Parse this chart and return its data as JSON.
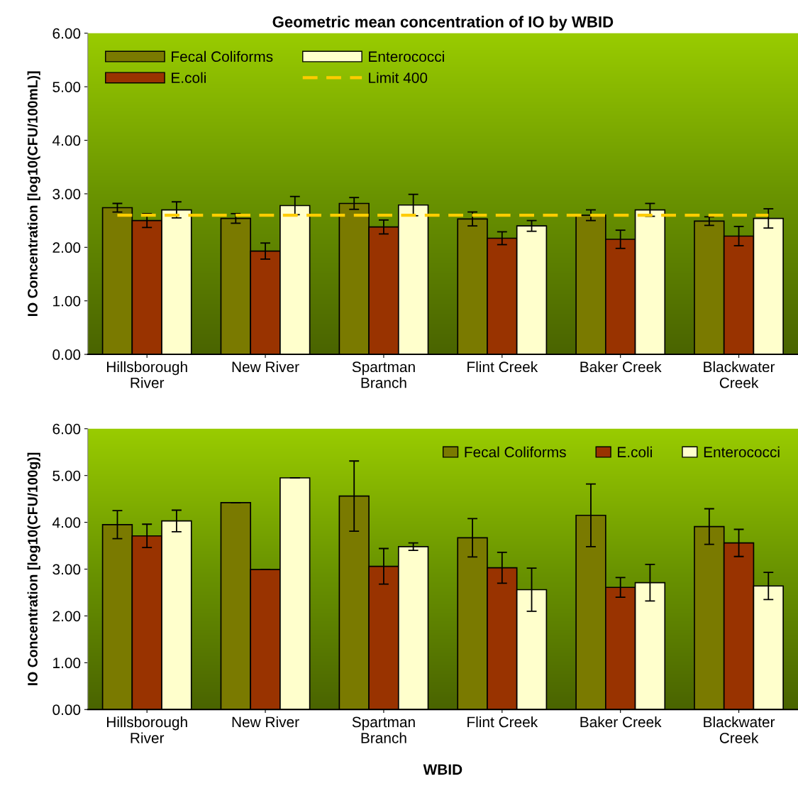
{
  "chart_data": [
    {
      "type": "bar",
      "title": "Geometric mean concentration of IO by WBID",
      "ylabel": "IO Concentration [log10(CFU/100mL)]",
      "categories": [
        "Hillsborough\nRiver",
        "New River",
        "Spartman\nBranch",
        "Flint Creek",
        "Baker Creek",
        "Blackwater\nCreek"
      ],
      "series": [
        {
          "name": "Fecal Coliforms",
          "color": "#7a7a00",
          "values": [
            2.74,
            2.54,
            2.82,
            2.53,
            2.6,
            2.49
          ],
          "errors": [
            0.08,
            0.09,
            0.11,
            0.13,
            0.1,
            0.08
          ]
        },
        {
          "name": "E.coli",
          "color": "#993300",
          "values": [
            2.5,
            1.93,
            2.38,
            2.17,
            2.15,
            2.21
          ],
          "errors": [
            0.13,
            0.15,
            0.13,
            0.12,
            0.17,
            0.18
          ]
        },
        {
          "name": "Enterococci",
          "color": "#ffffcc",
          "values": [
            2.7,
            2.78,
            2.79,
            2.4,
            2.7,
            2.54
          ],
          "errors": [
            0.15,
            0.17,
            0.2,
            0.1,
            0.12,
            0.18
          ]
        }
      ],
      "ref_lines": [
        {
          "axis": "y",
          "value": 2.6,
          "label": "Limit 400",
          "color": "#ffcc00",
          "line_style": "dashed"
        }
      ],
      "ylim": [
        0,
        6
      ],
      "yticks": [
        {
          "value": 0,
          "label": "0.00"
        },
        {
          "value": 1,
          "label": "1.00"
        },
        {
          "value": 2,
          "label": "2.00"
        },
        {
          "value": 3,
          "label": "3.00"
        },
        {
          "value": 4,
          "label": "4.00"
        },
        {
          "value": 5,
          "label": "5.00"
        },
        {
          "value": 6,
          "label": "6.00"
        }
      ],
      "legend": "top left"
    },
    {
      "type": "bar",
      "xlabel": "WBID",
      "ylabel": "IO Concentration [log10(CFU/100g)]",
      "categories": [
        "Hillsborough\nRiver",
        "New River",
        "Spartman\nBranch",
        "Flint Creek",
        "Baker Creek",
        "Blackwater\nCreek"
      ],
      "series": [
        {
          "name": "Fecal Coliforms",
          "color": "#7a7a00",
          "values": [
            3.95,
            4.42,
            4.56,
            3.67,
            4.15,
            3.91
          ],
          "errors": [
            0.3,
            0,
            0.75,
            0.41,
            0.67,
            0.38
          ]
        },
        {
          "name": "E.coli",
          "color": "#993300",
          "values": [
            3.71,
            2.99,
            3.06,
            3.03,
            2.61,
            3.56
          ],
          "errors": [
            0.25,
            0,
            0.38,
            0.33,
            0.21,
            0.29
          ]
        },
        {
          "name": "Enterococci",
          "color": "#ffffcc",
          "values": [
            4.03,
            4.95,
            3.48,
            2.56,
            2.71,
            2.64
          ],
          "errors": [
            0.23,
            0,
            0.08,
            0.46,
            0.39,
            0.29
          ]
        }
      ],
      "ylim": [
        0,
        6
      ],
      "yticks": [
        {
          "value": 0,
          "label": "0.00"
        },
        {
          "value": 1,
          "label": "1.00"
        },
        {
          "value": 2,
          "label": "2.00"
        },
        {
          "value": 3,
          "label": "3.00"
        },
        {
          "value": 4,
          "label": "4.00"
        },
        {
          "value": 5,
          "label": "5.00"
        },
        {
          "value": 6,
          "label": "6.00"
        }
      ],
      "legend": "top right"
    }
  ]
}
